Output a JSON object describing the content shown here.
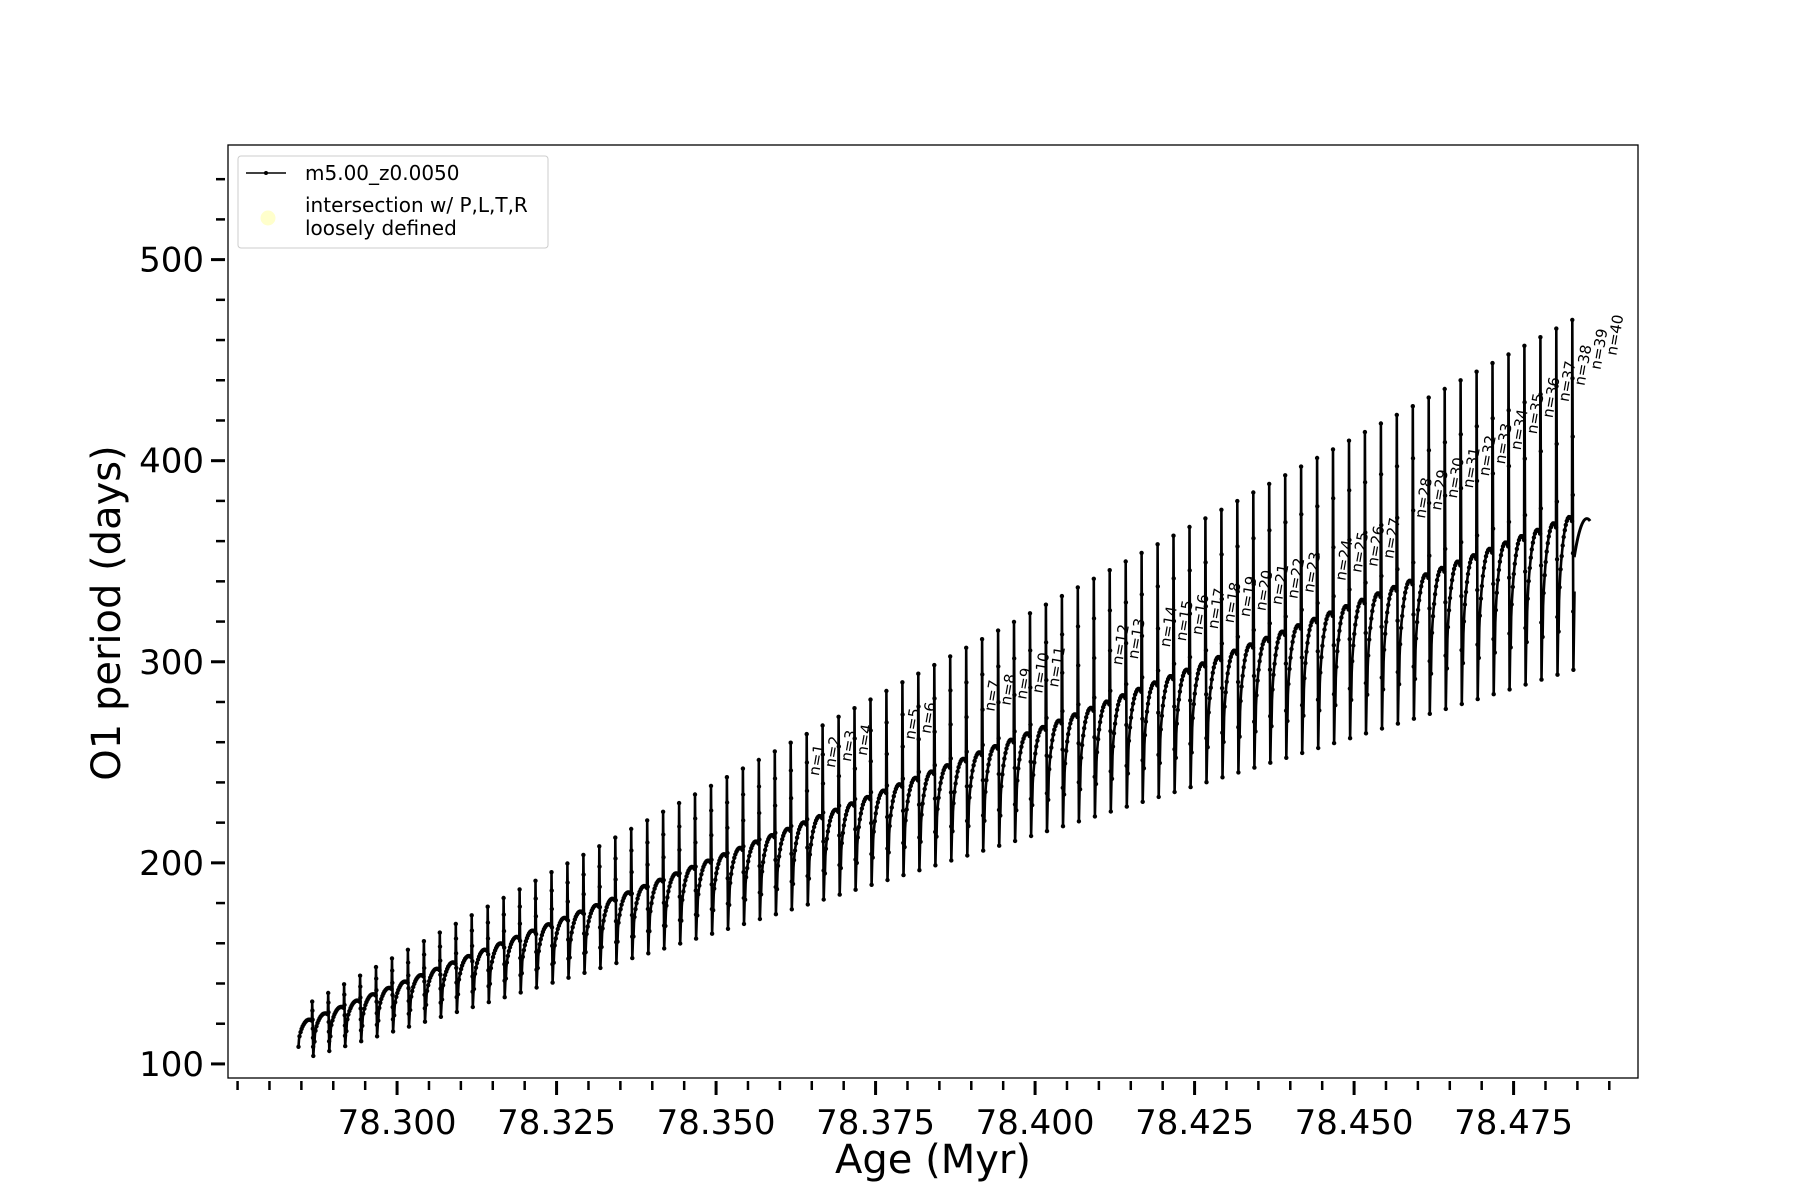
{
  "chart_data": {
    "type": "line",
    "xlabel": "Age (Myr)",
    "ylabel": "O1 period (days)",
    "xlim": [
      78.2735,
      78.4945
    ],
    "ylim": [
      93,
      557
    ],
    "xticks": [
      78.3,
      78.325,
      78.35,
      78.375,
      78.4,
      78.425,
      78.45,
      78.475
    ],
    "xtick_labels": [
      "78.300",
      "78.325",
      "78.350",
      "78.375",
      "78.400",
      "78.425",
      "78.450",
      "78.475"
    ],
    "yticks": [
      100,
      200,
      300,
      400,
      500
    ],
    "ytick_labels": [
      "100",
      "200",
      "300",
      "400",
      "500"
    ],
    "minor_xtick_step": 0.005,
    "minor_ytick_step": 20,
    "grid": false,
    "legend": {
      "placement": "upper-left",
      "entries": [
        {
          "label": "m5.00_z0.0050",
          "marker": "line-with-dots",
          "color": "#000000"
        },
        {
          "label_lines": [
            "intersection w/ P,L,T,R",
            "loosely defined"
          ],
          "marker": "circle",
          "color": "#ffffcc"
        }
      ]
    },
    "series": [
      {
        "name": "m5.00_z0.0050",
        "color": "#000000",
        "pulse_age_start": 78.2845,
        "pulse_age_end": 78.4845,
        "pulse_count": 80,
        "envelope_start": 122,
        "envelope_end": 372,
        "peak_start": 131,
        "peak_end": 470,
        "dip_start": 104,
        "dip_end": 296
      }
    ],
    "annotations": [
      {
        "label": "n=1",
        "x": 78.3661,
        "y": 243
      },
      {
        "label": "n=2",
        "x": 78.3686,
        "y": 247
      },
      {
        "label": "n=3",
        "x": 78.3711,
        "y": 250
      },
      {
        "label": "n=4",
        "x": 78.3736,
        "y": 253
      },
      {
        "label": "n=5",
        "x": 78.3811,
        "y": 261
      },
      {
        "label": "n=6",
        "x": 78.3836,
        "y": 264
      },
      {
        "label": "n=7",
        "x": 78.3936,
        "y": 275
      },
      {
        "label": "n=8",
        "x": 78.3961,
        "y": 278
      },
      {
        "label": "n=9",
        "x": 78.3986,
        "y": 281
      },
      {
        "label": "n=10",
        "x": 78.4011,
        "y": 284
      },
      {
        "label": "n=11",
        "x": 78.4036,
        "y": 287
      },
      {
        "label": "n=12",
        "x": 78.4136,
        "y": 298
      },
      {
        "label": "n=13",
        "x": 78.4161,
        "y": 301
      },
      {
        "label": "n=14",
        "x": 78.4211,
        "y": 307
      },
      {
        "label": "n=15",
        "x": 78.4236,
        "y": 310
      },
      {
        "label": "n=16",
        "x": 78.4261,
        "y": 313
      },
      {
        "label": "n=17",
        "x": 78.4286,
        "y": 316
      },
      {
        "label": "n=18",
        "x": 78.4311,
        "y": 319
      },
      {
        "label": "n=19",
        "x": 78.4336,
        "y": 322
      },
      {
        "label": "n=20",
        "x": 78.4361,
        "y": 325
      },
      {
        "label": "n=21",
        "x": 78.4386,
        "y": 328
      },
      {
        "label": "n=22",
        "x": 78.4411,
        "y": 331
      },
      {
        "label": "n=23",
        "x": 78.4436,
        "y": 334
      },
      {
        "label": "n=24",
        "x": 78.4486,
        "y": 340
      },
      {
        "label": "n=25",
        "x": 78.4511,
        "y": 344
      },
      {
        "label": "n=26",
        "x": 78.4536,
        "y": 347
      },
      {
        "label": "n=27",
        "x": 78.4561,
        "y": 351
      },
      {
        "label": "n=28",
        "x": 78.4611,
        "y": 371
      },
      {
        "label": "n=29",
        "x": 78.4636,
        "y": 375
      },
      {
        "label": "n=30",
        "x": 78.4661,
        "y": 381
      },
      {
        "label": "n=31",
        "x": 78.4686,
        "y": 386
      },
      {
        "label": "n=32",
        "x": 78.4711,
        "y": 392
      },
      {
        "label": "n=33",
        "x": 78.4736,
        "y": 398
      },
      {
        "label": "n=34",
        "x": 78.4761,
        "y": 405
      },
      {
        "label": "n=35",
        "x": 78.4786,
        "y": 413
      },
      {
        "label": "n=36",
        "x": 78.4811,
        "y": 421
      },
      {
        "label": "n=37",
        "x": 78.4836,
        "y": 429
      },
      {
        "label": "n=38",
        "x": 78.4861,
        "y": 437
      },
      {
        "label": "n=39",
        "x": 78.4886,
        "y": 445
      },
      {
        "label": "n=40",
        "x": 78.4911,
        "y": 452
      }
    ]
  }
}
